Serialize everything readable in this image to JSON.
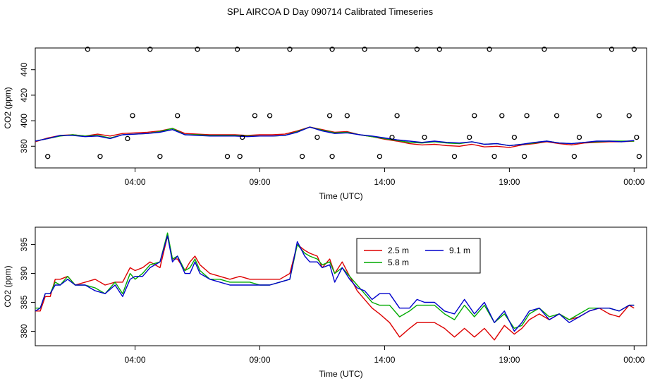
{
  "page_title": "SPL AIRCOA D  Day 090714  Calibrated Timeseries",
  "chart_data": [
    {
      "type": "line",
      "panel": "top",
      "xlabel": "Time (UTC)",
      "ylabel": "CO2 (ppm)",
      "x_unit": "hours since 00:00",
      "xlim": [
        0,
        24.5
      ],
      "ylim": [
        363,
        457
      ],
      "xticks": [
        4,
        9,
        14,
        19,
        24
      ],
      "xtick_labels": [
        "04:00",
        "09:00",
        "14:00",
        "19:00",
        "00:00"
      ],
      "yticks": [
        380,
        400,
        420,
        440
      ],
      "ytick_labels": [
        "380",
        "400",
        "420",
        "440"
      ],
      "series": [
        {
          "name": "2.5 m",
          "color": "#dd0000",
          "x": [
            0,
            0.5,
            1,
            1.5,
            2,
            2.5,
            3,
            3.5,
            4,
            4.5,
            5,
            5.5,
            6,
            6.5,
            7,
            7.5,
            8,
            8.5,
            9,
            9.5,
            10,
            10.5,
            11,
            11.5,
            12,
            12.5,
            13,
            13.5,
            14,
            14.5,
            15,
            15.5,
            16,
            16.5,
            17,
            17.5,
            18,
            18.5,
            19,
            19.5,
            20,
            20.5,
            21,
            21.5,
            22,
            22.5,
            23,
            23.5,
            24
          ],
          "values": [
            383.5,
            386.5,
            388.5,
            389,
            388,
            389.5,
            388,
            390,
            390.5,
            391,
            392,
            394,
            390,
            389.5,
            389,
            389,
            389,
            388.5,
            389,
            389,
            389.5,
            392,
            395,
            393,
            391,
            391.5,
            389,
            387.5,
            385.5,
            384,
            382,
            381,
            381.5,
            380.5,
            380,
            381.5,
            379.5,
            380,
            379,
            381,
            382,
            383.5,
            382,
            381,
            382.5,
            383,
            383.5,
            383.5,
            384
          ]
        },
        {
          "name": "5.8 m",
          "color": "#00aa00",
          "x": [
            0,
            0.5,
            1,
            1.5,
            2,
            2.5,
            3,
            3.5,
            4,
            4.5,
            5,
            5.5,
            6,
            6.5,
            7,
            7.5,
            8,
            8.5,
            9,
            9.5,
            10,
            10.5,
            11,
            11.5,
            12,
            12.5,
            13,
            13.5,
            14,
            14.5,
            15,
            15.5,
            16,
            16.5,
            17,
            17.5,
            18,
            18.5,
            19,
            19.5,
            20,
            20.5,
            21,
            21.5,
            22,
            22.5,
            23,
            23.5,
            24
          ],
          "values": [
            384,
            386,
            388,
            389,
            388,
            388.5,
            386.5,
            389,
            389.5,
            390,
            391.5,
            394,
            389,
            389,
            388.5,
            388.5,
            388.5,
            388,
            388,
            388,
            388.5,
            391.5,
            395,
            392.5,
            390.5,
            391,
            389,
            387.5,
            386,
            384.5,
            383,
            382.5,
            383.5,
            382.5,
            382,
            383.5,
            381.5,
            382,
            380.5,
            381.5,
            382.5,
            384,
            382.5,
            382,
            383,
            383.5,
            384,
            384,
            384
          ]
        },
        {
          "name": "9.1 m",
          "color": "#0000cc",
          "x": [
            0,
            0.5,
            1,
            1.5,
            2,
            2.5,
            3,
            3.5,
            4,
            4.5,
            5,
            5.5,
            6,
            6.5,
            7,
            7.5,
            8,
            8.5,
            9,
            9.5,
            10,
            10.5,
            11,
            11.5,
            12,
            12.5,
            13,
            13.5,
            14,
            14.5,
            15,
            15.5,
            16,
            16.5,
            17,
            17.5,
            18,
            18.5,
            19,
            19.5,
            20,
            20.5,
            21,
            21.5,
            22,
            22.5,
            23,
            23.5,
            24
          ],
          "values": [
            384,
            386,
            388.5,
            388.5,
            387.5,
            388,
            386,
            389,
            389.5,
            390,
            391,
            393,
            389,
            388.5,
            388,
            388,
            388,
            387.5,
            388,
            388,
            388.5,
            391,
            395,
            392,
            390,
            390.5,
            389,
            388,
            386.5,
            385,
            384,
            383,
            384,
            383,
            382.5,
            383.5,
            381.5,
            382,
            380.5,
            381.5,
            383,
            384,
            382.5,
            382,
            383,
            384,
            384,
            383.5,
            384.5
          ]
        }
      ],
      "markers": {
        "label": "o",
        "x": [
          0.5,
          2.1,
          2.6,
          3.7,
          3.9,
          4.6,
          5.0,
          5.7,
          6.5,
          7.7,
          8.1,
          8.2,
          8.3,
          8.8,
          9.4,
          10.2,
          10.7,
          11.3,
          11.8,
          11.9,
          11.9,
          12.5,
          13.2,
          13.8,
          14.3,
          14.5,
          15.3,
          15.6,
          16.2,
          16.8,
          17.4,
          17.6,
          18.2,
          18.4,
          18.7,
          19.2,
          19.6,
          19.7,
          20.4,
          20.9,
          21.6,
          21.8,
          22.6,
          23.1,
          23.8,
          24.0,
          24.1,
          24.2
        ],
        "values": [
          372,
          456,
          372,
          386,
          404,
          456,
          372,
          404,
          456,
          372,
          456,
          372,
          387,
          404,
          404,
          456,
          372,
          387,
          404,
          372,
          456,
          404,
          456,
          372,
          387,
          404,
          456,
          387,
          456,
          372,
          387,
          404,
          456,
          372,
          404,
          387,
          372,
          404,
          456,
          404,
          372,
          387,
          404,
          456,
          404,
          456,
          387,
          372
        ]
      }
    },
    {
      "type": "line",
      "panel": "bottom",
      "xlabel": "Time (UTC)",
      "ylabel": "CO2 (ppm)",
      "x_unit": "hours since 00:00",
      "xlim": [
        0,
        24.5
      ],
      "ylim": [
        377.5,
        398
      ],
      "xticks": [
        4,
        9,
        14,
        19,
        24
      ],
      "xtick_labels": [
        "04:00",
        "09:00",
        "14:00",
        "19:00",
        "00:00"
      ],
      "yticks": [
        380,
        385,
        390,
        395
      ],
      "ytick_labels": [
        "380",
        "385",
        "390",
        "395"
      ],
      "legend": {
        "placement": "top-center",
        "entries": [
          "2.5 m",
          "5.8 m",
          "9.1 m"
        ]
      },
      "series": [
        {
          "name": "2.5 m",
          "color": "#dd0000",
          "x": [
            0,
            0.2,
            0.4,
            0.6,
            0.8,
            1,
            1.3,
            1.6,
            2,
            2.4,
            2.8,
            3.2,
            3.5,
            3.8,
            4,
            4.3,
            4.6,
            5,
            5.3,
            5.5,
            5.7,
            6,
            6.2,
            6.4,
            6.6,
            7,
            7.4,
            7.8,
            8.2,
            8.6,
            9,
            9.4,
            9.8,
            10.2,
            10.5,
            10.8,
            11,
            11.3,
            11.5,
            11.8,
            12,
            12.3,
            12.6,
            12.9,
            13.2,
            13.5,
            13.8,
            14.2,
            14.6,
            15,
            15.3,
            15.6,
            16,
            16.4,
            16.8,
            17.2,
            17.6,
            18,
            18.4,
            18.8,
            19.2,
            19.5,
            19.8,
            20.2,
            20.6,
            21,
            21.4,
            21.8,
            22.2,
            22.6,
            23,
            23.4,
            23.8,
            24
          ],
          "values": [
            383.5,
            383.5,
            386,
            386,
            389,
            389,
            389.5,
            388,
            388.5,
            389,
            388,
            388.5,
            388.5,
            391,
            390.5,
            391,
            392,
            391,
            396.5,
            392.5,
            392.5,
            390.5,
            392,
            393,
            391.5,
            390,
            389.5,
            389,
            389.5,
            389,
            389,
            389,
            389,
            390,
            395,
            394,
            393.5,
            393,
            391,
            392.5,
            390,
            392,
            389.5,
            387,
            385.5,
            384,
            383,
            381.5,
            379,
            380.5,
            381.5,
            381.5,
            381.5,
            380.5,
            379,
            380.5,
            379,
            380.5,
            378.5,
            381,
            379.5,
            380.5,
            382,
            383,
            382,
            383,
            382,
            382.5,
            383.5,
            384,
            383,
            382.5,
            384.5,
            384
          ]
        },
        {
          "name": "5.8 m",
          "color": "#00aa00",
          "x": [
            0,
            0.2,
            0.4,
            0.6,
            0.8,
            1,
            1.3,
            1.6,
            2,
            2.4,
            2.8,
            3.2,
            3.5,
            3.8,
            4,
            4.3,
            4.6,
            5,
            5.3,
            5.5,
            5.7,
            6,
            6.2,
            6.4,
            6.6,
            7,
            7.4,
            7.8,
            8.2,
            8.6,
            9,
            9.4,
            9.8,
            10.2,
            10.5,
            10.8,
            11,
            11.3,
            11.5,
            11.8,
            12,
            12.3,
            12.6,
            12.9,
            13.2,
            13.5,
            13.8,
            14.2,
            14.6,
            15,
            15.3,
            15.6,
            16,
            16.4,
            16.8,
            17.2,
            17.6,
            18,
            18.4,
            18.8,
            19.2,
            19.5,
            19.8,
            20.2,
            20.6,
            21,
            21.4,
            21.8,
            22.2,
            22.6,
            23,
            23.4,
            23.8,
            24
          ],
          "values": [
            384,
            384,
            386.5,
            386.5,
            388.5,
            388,
            389.5,
            388,
            388,
            387.5,
            386.5,
            388.5,
            386.5,
            390,
            389,
            390,
            391.5,
            392,
            397,
            392.5,
            393,
            390.5,
            391,
            392.5,
            390.5,
            389,
            389,
            388.5,
            388.5,
            388.5,
            388,
            388,
            388.5,
            389,
            395,
            393.5,
            393,
            392.5,
            391.5,
            392,
            390,
            391,
            389.5,
            388,
            386.5,
            385,
            384.5,
            384.5,
            382.5,
            383.5,
            384.5,
            384.5,
            384.5,
            383,
            382,
            384.5,
            382.5,
            384.5,
            381.5,
            383,
            380.5,
            381,
            383,
            384,
            382.5,
            383,
            382,
            383,
            384,
            384,
            384,
            383.5,
            384.5,
            384.5
          ]
        },
        {
          "name": "9.1 m",
          "color": "#0000cc",
          "x": [
            0,
            0.2,
            0.4,
            0.6,
            0.8,
            1,
            1.3,
            1.6,
            2,
            2.4,
            2.8,
            3.2,
            3.5,
            3.8,
            4,
            4.3,
            4.6,
            5,
            5.3,
            5.5,
            5.7,
            6,
            6.2,
            6.4,
            6.6,
            7,
            7.4,
            7.8,
            8.2,
            8.6,
            9,
            9.4,
            9.8,
            10.2,
            10.5,
            10.8,
            11,
            11.3,
            11.5,
            11.8,
            12,
            12.3,
            12.6,
            12.9,
            13.2,
            13.5,
            13.8,
            14.2,
            14.6,
            15,
            15.3,
            15.6,
            16,
            16.4,
            16.8,
            17.2,
            17.6,
            18,
            18.4,
            18.8,
            19.2,
            19.5,
            19.8,
            20.2,
            20.6,
            21,
            21.4,
            21.8,
            22.2,
            22.6,
            23,
            23.4,
            23.8,
            24
          ],
          "values": [
            383.5,
            384,
            386.5,
            386.5,
            388,
            388,
            389,
            388,
            388,
            387,
            386.5,
            388,
            386,
            389,
            389.5,
            389.5,
            391,
            392,
            396.5,
            392,
            393,
            390,
            390,
            392,
            390,
            389,
            388.5,
            388,
            388,
            388,
            388,
            388,
            388.5,
            389,
            395.5,
            393,
            392,
            392,
            391,
            391.5,
            388.5,
            391,
            389,
            387.5,
            387,
            385.5,
            386.5,
            386.5,
            384,
            384,
            385.5,
            385,
            385,
            383.5,
            383,
            385.5,
            383,
            385,
            381.5,
            383.5,
            380,
            381.5,
            383.5,
            384,
            382,
            383,
            381.5,
            382.5,
            383.5,
            384,
            384,
            383.5,
            384.5,
            384.5
          ]
        }
      ]
    }
  ]
}
